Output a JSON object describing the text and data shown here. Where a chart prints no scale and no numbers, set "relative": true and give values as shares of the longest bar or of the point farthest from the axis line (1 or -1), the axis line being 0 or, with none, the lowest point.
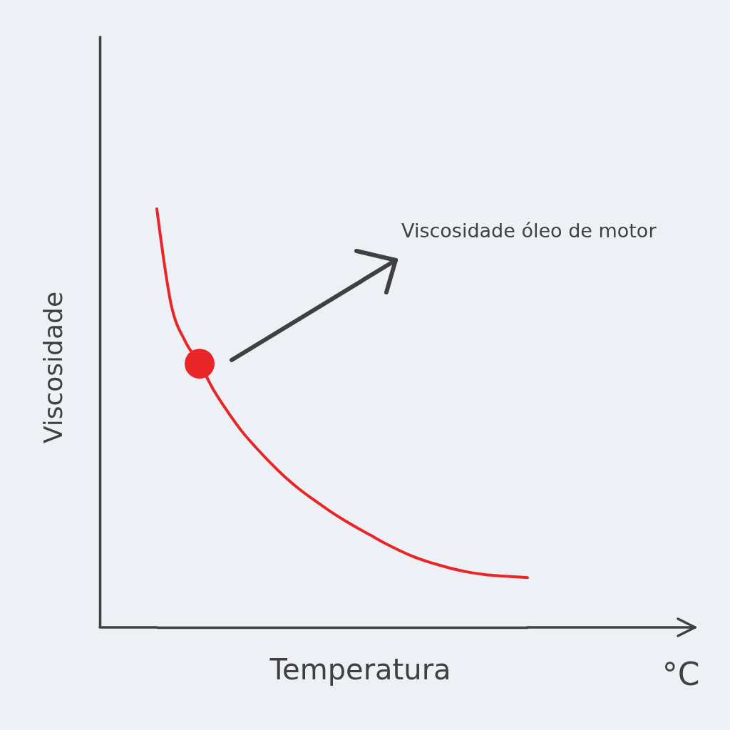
{
  "chart_data": {
    "type": "line",
    "xlabel": "Temperatura",
    "ylabel": "Viscosidade",
    "annotations": [
      "Viscosidade óleo de motor",
      "°C"
    ],
    "relative": true,
    "categories": [
      null,
      null,
      null,
      null,
      null,
      null,
      null,
      null,
      null,
      null,
      null,
      null,
      null,
      null,
      null,
      null,
      null,
      null,
      null,
      null,
      null,
      null,
      null,
      null,
      null,
      null,
      null
    ],
    "series": [
      {
        "color": "#e8262a",
        "values": [
          1.0,
          0.772,
          0.683,
          0.63,
          0.566,
          0.514,
          0.467,
          0.428,
          0.392,
          0.359,
          0.33,
          0.305,
          0.281,
          0.259,
          0.239,
          0.22,
          0.201,
          0.184,
          0.169,
          0.157,
          0.147,
          0.138,
          0.131,
          0.126,
          0.123,
          0.121,
          0.119
        ]
      },
      {
        "type": "line",
        "marker": "circle",
        "color": "#e8262a",
        "values": [
          null,
          null,
          null,
          0.63,
          null,
          null,
          null,
          null,
          null,
          null,
          null,
          null,
          null,
          null,
          null,
          null,
          null,
          null,
          null,
          null,
          null,
          null,
          null,
          null,
          null,
          null,
          null
        ]
      }
    ]
  }
}
